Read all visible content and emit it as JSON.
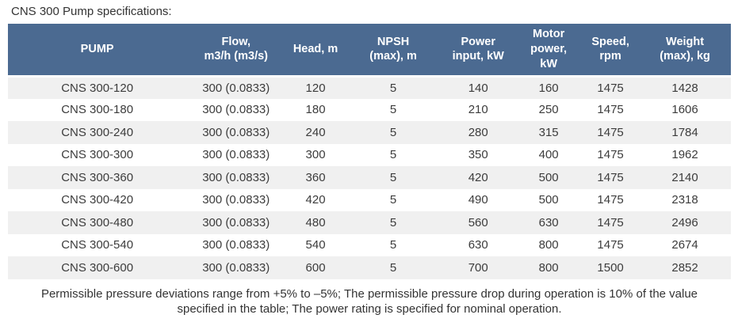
{
  "page": {
    "title": "CNS 300 Pump specifications:",
    "footnote": "Permissible pressure deviations range from +5% to –5%; The permissible pressure drop during operation is 10% of the value specified in the table; The power rating is specified for nominal operation."
  },
  "colors": {
    "header_bg": "#4b6a91",
    "header_text": "#ffffff",
    "row_alt_bg": "#f0f0f0",
    "row_bg": "#ffffff",
    "body_text": "#3c3c3c"
  },
  "table": {
    "columns": [
      {
        "key": "pump",
        "label": "PUMP"
      },
      {
        "key": "flow",
        "label": "Flow,\nm3/h (m3/s)"
      },
      {
        "key": "head",
        "label": "Head, m"
      },
      {
        "key": "npsh",
        "label": "NPSH\n(max), m"
      },
      {
        "key": "power-input",
        "label": "Power\ninput, kW"
      },
      {
        "key": "motor-power",
        "label": "Motor\npower,\nkW"
      },
      {
        "key": "speed",
        "label": "Speed,\nrpm"
      },
      {
        "key": "weight",
        "label": "Weight\n(max), kg"
      }
    ],
    "rows": [
      [
        "CNS 300-120",
        "300 (0.0833)",
        "120",
        "5",
        "140",
        "160",
        "1475",
        "1428"
      ],
      [
        "CNS 300-180",
        "300 (0.0833)",
        "180",
        "5",
        "210",
        "250",
        "1475",
        "1606"
      ],
      [
        "CNS 300-240",
        "300 (0.0833)",
        "240",
        "5",
        "280",
        "315",
        "1475",
        "1784"
      ],
      [
        "CNS 300-300",
        "300 (0.0833)",
        "300",
        "5",
        "350",
        "400",
        "1475",
        "1962"
      ],
      [
        "CNS 300-360",
        "300 (0.0833)",
        "360",
        "5",
        "420",
        "500",
        "1475",
        "2140"
      ],
      [
        "CNS 300-420",
        "300 (0.0833)",
        "420",
        "5",
        "490",
        "500",
        "1475",
        "2318"
      ],
      [
        "CNS 300-480",
        "300 (0.0833)",
        "480",
        "5",
        "560",
        "630",
        "1475",
        "2496"
      ],
      [
        "CNS 300-540",
        "300 (0.0833)",
        "540",
        "5",
        "630",
        "800",
        "1475",
        "2674"
      ],
      [
        "CNS 300-600",
        "300 (0.0833)",
        "600",
        "5",
        "700",
        "800",
        "1500",
        "2852"
      ]
    ]
  }
}
